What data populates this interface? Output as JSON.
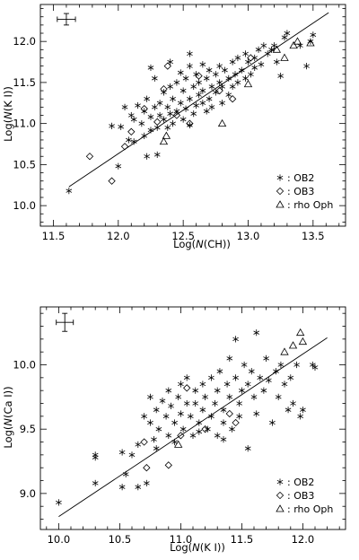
{
  "chart_data": [
    {
      "type": "scatter",
      "xlabel_prefix": "Log(",
      "xlabel_var": "N",
      "xlabel_suffix": "(CH))",
      "ylabel_prefix": "Log(",
      "ylabel_var": "N",
      "ylabel_suffix": "(K I))",
      "xlim": [
        11.4,
        13.75
      ],
      "ylim": [
        9.75,
        12.45
      ],
      "xticks": [
        11.5,
        12.0,
        12.5,
        13.0,
        13.5
      ],
      "yticks": [
        10.0,
        10.5,
        11.0,
        11.5,
        12.0
      ],
      "minor_x_step": 0.1,
      "minor_y_step": 0.1,
      "legend_placement": "bottom-right",
      "errorbar": {
        "x": 11.6,
        "y": 12.27,
        "dx": 0.07,
        "dy": 0.07
      },
      "fit_line": {
        "x": [
          11.62,
          13.62
        ],
        "y": [
          10.23,
          12.35
        ]
      },
      "series": [
        {
          "name": "OB2",
          "marker": "asterisk",
          "points": [
            [
              11.62,
              10.18
            ],
            [
              11.95,
              10.97
            ],
            [
              12.0,
              10.48
            ],
            [
              12.02,
              10.96
            ],
            [
              12.05,
              11.2
            ],
            [
              12.08,
              10.8
            ],
            [
              12.1,
              11.1
            ],
            [
              12.12,
              11.05
            ],
            [
              12.12,
              10.78
            ],
            [
              12.15,
              11.22
            ],
            [
              12.18,
              11.0
            ],
            [
              12.2,
              11.15
            ],
            [
              12.2,
              10.85
            ],
            [
              12.22,
              11.3
            ],
            [
              12.22,
              10.6
            ],
            [
              12.25,
              11.08
            ],
            [
              12.25,
              10.92
            ],
            [
              12.28,
              11.55
            ],
            [
              12.28,
              11.2
            ],
            [
              12.3,
              10.95
            ],
            [
              12.3,
              10.62
            ],
            [
              12.32,
              11.25
            ],
            [
              12.32,
              11.1
            ],
            [
              12.35,
              11.38
            ],
            [
              12.35,
              11.05
            ],
            [
              12.38,
              11.2
            ],
            [
              12.38,
              10.95
            ],
            [
              12.4,
              11.45
            ],
            [
              12.4,
              11.12
            ],
            [
              12.42,
              11.3
            ],
            [
              12.42,
              11.0
            ],
            [
              12.45,
              11.5
            ],
            [
              12.45,
              11.15
            ],
            [
              12.48,
              11.62
            ],
            [
              12.48,
              11.25
            ],
            [
              12.5,
              11.4
            ],
            [
              12.5,
              11.05
            ],
            [
              12.52,
              11.55
            ],
            [
              12.52,
              11.18
            ],
            [
              12.55,
              11.7
            ],
            [
              12.55,
              11.3
            ],
            [
              12.55,
              10.98
            ],
            [
              12.58,
              11.45
            ],
            [
              12.58,
              11.12
            ],
            [
              12.6,
              11.6
            ],
            [
              12.6,
              11.22
            ],
            [
              12.62,
              11.5
            ],
            [
              12.62,
              11.35
            ],
            [
              12.65,
              11.72
            ],
            [
              12.65,
              11.4
            ],
            [
              12.68,
              11.55
            ],
            [
              12.68,
              11.15
            ],
            [
              12.7,
              11.65
            ],
            [
              12.7,
              11.3
            ],
            [
              12.72,
              11.45
            ],
            [
              12.72,
              11.2
            ],
            [
              12.75,
              11.6
            ],
            [
              12.75,
              11.38
            ],
            [
              12.78,
              11.7
            ],
            [
              12.78,
              11.5
            ],
            [
              12.8,
              11.45
            ],
            [
              12.8,
              11.25
            ],
            [
              12.82,
              11.65
            ],
            [
              12.85,
              11.55
            ],
            [
              12.85,
              11.35
            ],
            [
              12.88,
              11.75
            ],
            [
              12.88,
              11.45
            ],
            [
              12.9,
              11.6
            ],
            [
              12.92,
              11.8
            ],
            [
              12.92,
              11.5
            ],
            [
              12.95,
              11.65
            ],
            [
              12.98,
              11.85
            ],
            [
              12.98,
              11.55
            ],
            [
              13.0,
              11.75
            ],
            [
              13.02,
              11.6
            ],
            [
              13.05,
              11.8
            ],
            [
              13.05,
              11.68
            ],
            [
              13.08,
              11.9
            ],
            [
              13.1,
              11.72
            ],
            [
              13.12,
              11.95
            ],
            [
              13.15,
              11.85
            ],
            [
              13.18,
              11.9
            ],
            [
              13.2,
              11.95
            ],
            [
              13.22,
              11.75
            ],
            [
              13.25,
              11.58
            ],
            [
              13.28,
              12.05
            ],
            [
              13.3,
              12.1
            ],
            [
              13.4,
              11.95
            ],
            [
              13.45,
              11.7
            ],
            [
              13.48,
              12.0
            ],
            [
              13.5,
              12.08
            ],
            [
              12.4,
              11.75
            ],
            [
              12.55,
              11.85
            ],
            [
              12.65,
              11.25
            ],
            [
              12.25,
              11.68
            ]
          ]
        },
        {
          "name": "OB3",
          "marker": "diamond",
          "points": [
            [
              11.78,
              10.6
            ],
            [
              11.95,
              10.3
            ],
            [
              12.05,
              10.72
            ],
            [
              12.1,
              10.9
            ],
            [
              12.2,
              11.18
            ],
            [
              12.3,
              11.02
            ],
            [
              12.35,
              11.42
            ],
            [
              12.38,
              11.7
            ],
            [
              12.45,
              11.1
            ],
            [
              12.55,
              11.0
            ],
            [
              12.62,
              11.58
            ],
            [
              12.78,
              11.4
            ],
            [
              12.88,
              11.3
            ],
            [
              13.02,
              11.8
            ]
          ]
        },
        {
          "name": "rho Oph",
          "marker": "triangle",
          "points": [
            [
              12.35,
              10.78
            ],
            [
              12.37,
              10.85
            ],
            [
              12.8,
              11.0
            ],
            [
              13.0,
              11.48
            ],
            [
              13.22,
              11.9
            ],
            [
              13.28,
              11.8
            ],
            [
              13.35,
              11.95
            ],
            [
              13.38,
              12.0
            ],
            [
              13.48,
              11.98
            ]
          ]
        }
      ]
    },
    {
      "type": "scatter",
      "xlabel_prefix": "Log(",
      "xlabel_var": "N",
      "xlabel_suffix": "(K I))",
      "ylabel_prefix": "Log(",
      "ylabel_var": "N",
      "ylabel_suffix": "(Ca I))",
      "xlim": [
        9.85,
        12.35
      ],
      "ylim": [
        8.72,
        10.45
      ],
      "xticks": [
        10.0,
        10.5,
        11.0,
        11.5,
        12.0
      ],
      "yticks": [
        9.0,
        9.5,
        10.0
      ],
      "minor_x_step": 0.1,
      "minor_y_step": 0.1,
      "legend_placement": "bottom-right",
      "errorbar": {
        "x": 10.05,
        "y": 10.33,
        "dx": 0.07,
        "dy": 0.07
      },
      "fit_line": {
        "x": [
          10.0,
          12.2
        ],
        "y": [
          8.82,
          10.21
        ]
      },
      "series": [
        {
          "name": "OB2",
          "marker": "asterisk",
          "points": [
            [
              10.0,
              8.93
            ],
            [
              10.3,
              9.08
            ],
            [
              10.3,
              9.3
            ],
            [
              10.3,
              9.28
            ],
            [
              10.52,
              9.05
            ],
            [
              10.52,
              9.32
            ],
            [
              10.55,
              9.15
            ],
            [
              10.6,
              9.3
            ],
            [
              10.65,
              9.05
            ],
            [
              10.65,
              9.38
            ],
            [
              10.7,
              9.6
            ],
            [
              10.72,
              9.08
            ],
            [
              10.75,
              9.75
            ],
            [
              10.75,
              9.55
            ],
            [
              10.78,
              9.42
            ],
            [
              10.8,
              9.35
            ],
            [
              10.8,
              9.65
            ],
            [
              10.82,
              9.5
            ],
            [
              10.85,
              9.72
            ],
            [
              10.88,
              9.6
            ],
            [
              10.9,
              9.45
            ],
            [
              10.9,
              9.8
            ],
            [
              10.92,
              9.68
            ],
            [
              10.95,
              9.55
            ],
            [
              10.95,
              9.4
            ],
            [
              10.98,
              9.75
            ],
            [
              11.0,
              9.62
            ],
            [
              11.0,
              9.85
            ],
            [
              11.02,
              9.5
            ],
            [
              11.05,
              9.7
            ],
            [
              11.05,
              9.9
            ],
            [
              11.08,
              9.6
            ],
            [
              11.1,
              9.45
            ],
            [
              11.12,
              9.8
            ],
            [
              11.12,
              9.7
            ],
            [
              11.15,
              9.55
            ],
            [
              11.18,
              9.85
            ],
            [
              11.18,
              9.65
            ],
            [
              11.2,
              9.75
            ],
            [
              11.22,
              9.5
            ],
            [
              11.25,
              9.9
            ],
            [
              11.25,
              9.6
            ],
            [
              11.28,
              9.7
            ],
            [
              11.3,
              9.8
            ],
            [
              11.3,
              9.45
            ],
            [
              11.32,
              9.95
            ],
            [
              11.35,
              9.65
            ],
            [
              11.35,
              9.55
            ],
            [
              11.38,
              9.85
            ],
            [
              11.4,
              10.05
            ],
            [
              11.4,
              9.75
            ],
            [
              11.42,
              9.5
            ],
            [
              11.45,
              9.9
            ],
            [
              11.48,
              9.7
            ],
            [
              11.48,
              9.6
            ],
            [
              11.5,
              9.8
            ],
            [
              11.52,
              10.0
            ],
            [
              11.55,
              9.85
            ],
            [
              11.55,
              9.35
            ],
            [
              11.58,
              9.95
            ],
            [
              11.6,
              9.75
            ],
            [
              11.62,
              9.62
            ],
            [
              11.62,
              10.25
            ],
            [
              11.65,
              9.9
            ],
            [
              11.68,
              9.8
            ],
            [
              11.7,
              10.05
            ],
            [
              11.72,
              9.88
            ],
            [
              11.75,
              9.55
            ],
            [
              11.78,
              9.95
            ],
            [
              11.8,
              9.75
            ],
            [
              11.82,
              10.0
            ],
            [
              11.85,
              9.85
            ],
            [
              11.88,
              9.65
            ],
            [
              11.9,
              9.9
            ],
            [
              11.92,
              9.7
            ],
            [
              11.95,
              10.0
            ],
            [
              11.98,
              9.6
            ],
            [
              12.0,
              9.65
            ],
            [
              12.08,
              10.0
            ],
            [
              12.1,
              9.98
            ],
            [
              11.45,
              10.2
            ],
            [
              11.15,
              9.48
            ],
            [
              11.35,
              9.42
            ]
          ]
        },
        {
          "name": "OB3",
          "marker": "diamond",
          "points": [
            [
              10.7,
              9.4
            ],
            [
              10.72,
              9.2
            ],
            [
              10.9,
              9.22
            ],
            [
              11.0,
              9.45
            ],
            [
              11.05,
              9.82
            ],
            [
              11.2,
              9.5
            ],
            [
              11.4,
              9.62
            ],
            [
              11.45,
              9.55
            ]
          ]
        },
        {
          "name": "rho Oph",
          "marker": "triangle",
          "points": [
            [
              10.98,
              9.38
            ],
            [
              11.85,
              10.1
            ],
            [
              11.92,
              10.15
            ],
            [
              11.98,
              10.25
            ],
            [
              12.0,
              10.18
            ]
          ]
        }
      ]
    }
  ]
}
